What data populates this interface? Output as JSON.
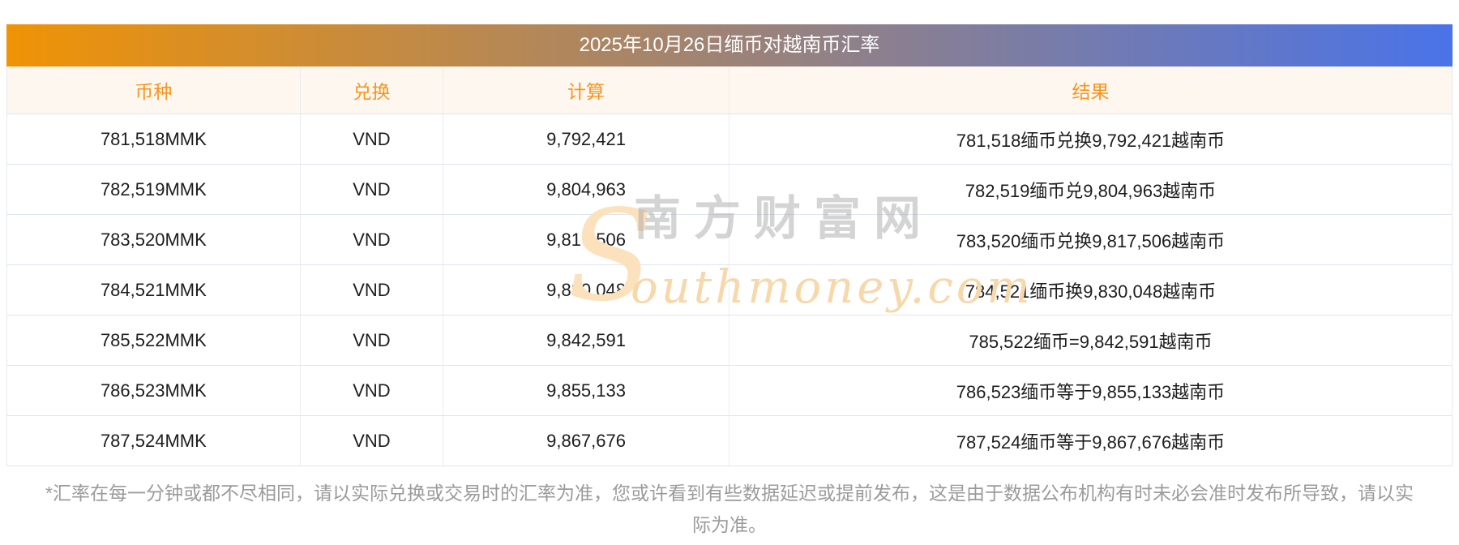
{
  "banner": {
    "title": "2025年10月26日缅币对越南币汇率",
    "gradient_left": "#f09305",
    "gradient_right": "#4a73e8"
  },
  "table": {
    "headers": {
      "currency": "币种",
      "exchange": "兑换",
      "calc": "计算",
      "result": "结果"
    },
    "header_text_color": "#f8941e",
    "header_bg_color": "#fdf7ef",
    "rows": [
      {
        "currency": "781,518MMK",
        "exchange": "VND",
        "calc": "9,792,421",
        "result": "781,518缅币兑换9,792,421越南币"
      },
      {
        "currency": "782,519MMK",
        "exchange": "VND",
        "calc": "9,804,963",
        "result": "782,519缅币兑9,804,963越南币"
      },
      {
        "currency": "783,520MMK",
        "exchange": "VND",
        "calc": "9,817,506",
        "result": "783,520缅币兑换9,817,506越南币"
      },
      {
        "currency": "784,521MMK",
        "exchange": "VND",
        "calc": "9,830,048",
        "result": "784,521缅币换9,830,048越南币"
      },
      {
        "currency": "785,522MMK",
        "exchange": "VND",
        "calc": "9,842,591",
        "result": "785,522缅币=9,842,591越南币"
      },
      {
        "currency": "786,523MMK",
        "exchange": "VND",
        "calc": "9,855,133",
        "result": "786,523缅币等于9,855,133越南币"
      },
      {
        "currency": "787,524MMK",
        "exchange": "VND",
        "calc": "9,867,676",
        "result": "787,524缅币等于9,867,676越南币"
      }
    ]
  },
  "watermark": {
    "cn_text": "南方财富网",
    "big_letter": "S",
    "script_text": "outhmoney.com",
    "orange_color": "#fbe2bd",
    "gray_color": "#d4d4d4"
  },
  "disclaimer": {
    "line1": "*汇率在每一分钟或都不尽相同，请以实际兑换或交易时的汇率为准，您或许看到有些数据延迟或提前发布，这是由于数据公布机构有时未必会准时发布所导致，请以实",
    "line2": "际为准。"
  }
}
